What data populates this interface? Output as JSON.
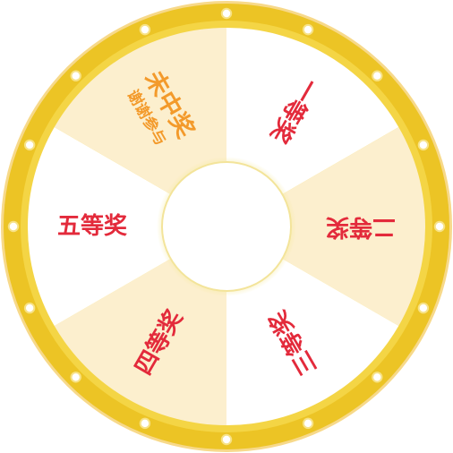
{
  "wheel": {
    "colors": {
      "rim_outer": "#f7d98a",
      "rim": "#ecc425",
      "rim_inner": "#f4d545",
      "segment_light": "#ffffff",
      "segment_cream": "#fcefce",
      "hub_glow": "#f6ea9c",
      "hub": "#ffffff",
      "bulb": "#ffffff",
      "prize_text": "#e32a3b",
      "none_text": "#f39a2b"
    },
    "segments": [
      {
        "title": "一等奖",
        "subtitle": "",
        "fill": "light",
        "text": "prize"
      },
      {
        "title": "二等奖",
        "subtitle": "",
        "fill": "cream",
        "text": "prize"
      },
      {
        "title": "三等奖",
        "subtitle": "",
        "fill": "light",
        "text": "prize"
      },
      {
        "title": "四等奖",
        "subtitle": "",
        "fill": "cream",
        "text": "prize"
      },
      {
        "title": "五等奖",
        "subtitle": "",
        "fill": "light",
        "text": "prize"
      },
      {
        "title": "未中奖",
        "subtitle": "谢谢参与",
        "fill": "cream",
        "text": "none"
      }
    ],
    "bulb_count": 16
  }
}
